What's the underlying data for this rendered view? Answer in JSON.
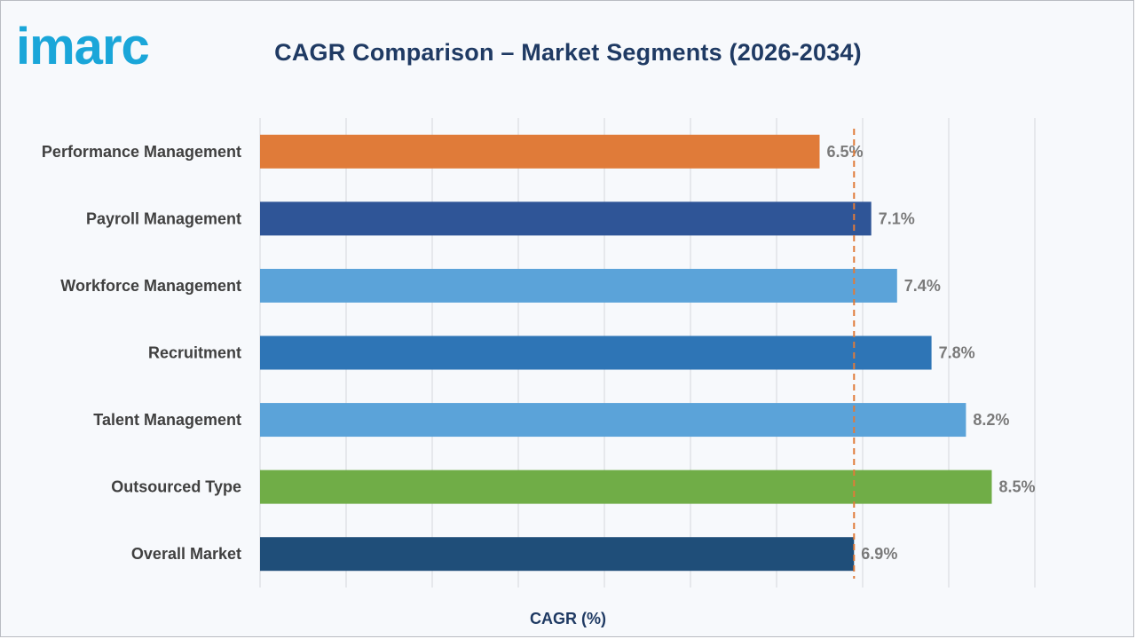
{
  "brand": {
    "logo_text": "imarc",
    "logo_color": "#1aa6d9"
  },
  "colors": {
    "title": "#1f3a63",
    "grid": "#d4d7dc",
    "reference_line": "#e07b39",
    "category_label": "#404040",
    "value_label": "#7a7a7a"
  },
  "chart_data": {
    "type": "bar",
    "orientation": "horizontal",
    "title": "CAGR Comparison – Market Segments (2026-2034)",
    "xlabel": "CAGR (%)",
    "ylabel": "",
    "xlim": [
      0,
      9
    ],
    "grid": true,
    "categories": [
      "Performance Management",
      "Payroll Management",
      "Workforce Management",
      "Recruitment",
      "Talent Management",
      "Outsourced Type",
      "Overall Market"
    ],
    "values": [
      6.5,
      7.1,
      7.4,
      7.8,
      8.2,
      8.5,
      6.9
    ],
    "value_labels": [
      "6.5%",
      "7.1%",
      "7.4%",
      "7.8%",
      "8.2%",
      "8.5%",
      "6.9%"
    ],
    "bar_colors": [
      "#e07b39",
      "#2f5597",
      "#5ba3d9",
      "#2e75b6",
      "#5ba3d9",
      "#70ad47",
      "#1f4e79"
    ],
    "reference_line": {
      "value": 6.9,
      "style": "dashed",
      "color": "#e07b39"
    }
  }
}
